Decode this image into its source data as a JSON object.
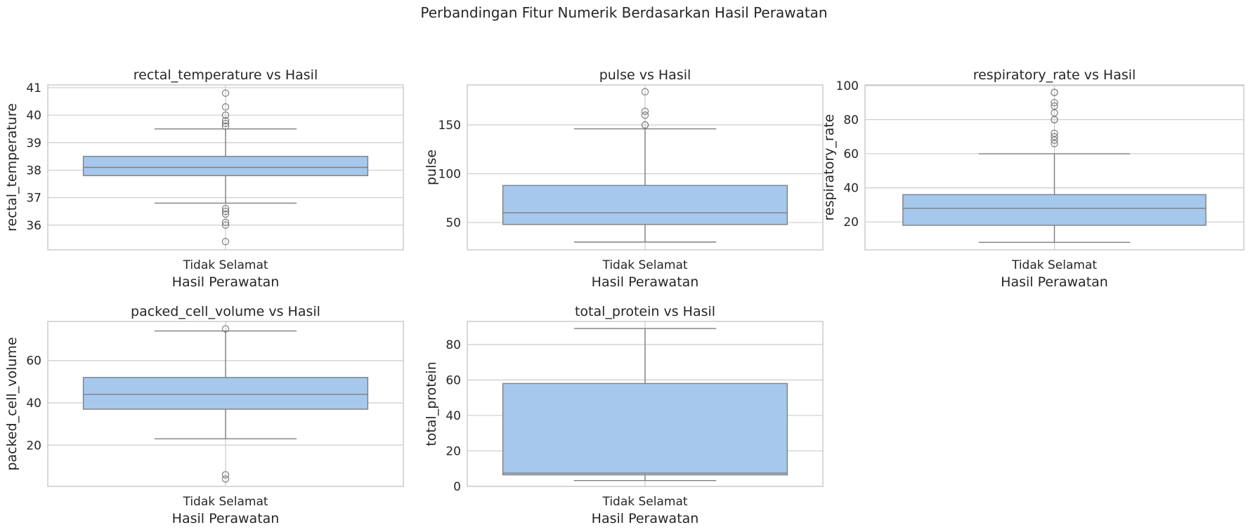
{
  "figure": {
    "suptitle": "Perbandingan Fitur Numerik Berdasarkan Hasil Perawatan"
  },
  "style": {
    "box_fill": "#a7c8ed",
    "line_color": "#7f7f7f",
    "grid_color": "#cccccc",
    "spine_color": "#cccccc",
    "text_color": "#262626",
    "grid": true
  },
  "chart_data": [
    {
      "type": "box",
      "title": "rectal_temperature vs Hasil",
      "xlabel": "Hasil Perawatan",
      "ylabel": "rectal_temperature",
      "categories": [
        "Tidak Selamat"
      ],
      "ylim": [
        35.1,
        41.1
      ],
      "yticks": [
        36,
        37,
        38,
        39,
        40,
        41
      ],
      "boxes": [
        {
          "category": "Tidak Selamat",
          "whisker_low": 36.8,
          "q1": 37.8,
          "median": 38.1,
          "q3": 38.5,
          "whisker_high": 39.5,
          "outliers": [
            40.8,
            40.3,
            40.0,
            39.8,
            39.7,
            39.6,
            36.6,
            36.5,
            36.4,
            36.1,
            36.0,
            35.4
          ]
        }
      ]
    },
    {
      "type": "box",
      "title": "pulse vs Hasil",
      "xlabel": "Hasil Perawatan",
      "ylabel": "pulse",
      "categories": [
        "Tidak Selamat"
      ],
      "ylim": [
        22,
        191
      ],
      "yticks": [
        50,
        100,
        150
      ],
      "boxes": [
        {
          "category": "Tidak Selamat",
          "whisker_low": 30,
          "q1": 48,
          "median": 60,
          "q3": 88,
          "whisker_high": 146,
          "outliers": [
            184,
            164,
            160,
            150,
            150
          ]
        }
      ]
    },
    {
      "type": "box",
      "title": "respiratory_rate vs Hasil",
      "xlabel": "Hasil Perawatan",
      "ylabel": "respiratory_rate",
      "categories": [
        "Tidak Selamat"
      ],
      "ylim": [
        3.6,
        100.4
      ],
      "yticks": [
        20,
        40,
        60,
        80,
        100
      ],
      "boxes": [
        {
          "category": "Tidak Selamat",
          "whisker_low": 8,
          "q1": 18,
          "median": 28,
          "q3": 36,
          "whisker_high": 60,
          "outliers": [
            96,
            96,
            90,
            88,
            84,
            80,
            80,
            72,
            70,
            68,
            66
          ]
        }
      ]
    },
    {
      "type": "box",
      "title": "packed_cell_volume vs Hasil",
      "xlabel": "Hasil Perawatan",
      "ylabel": "packed_cell_volume",
      "categories": [
        "Tidak Selamat"
      ],
      "ylim": [
        0.5,
        78.5
      ],
      "yticks": [
        20,
        40,
        60
      ],
      "boxes": [
        {
          "category": "Tidak Selamat",
          "whisker_low": 23,
          "q1": 37,
          "median": 44,
          "q3": 52,
          "whisker_high": 74,
          "outliers": [
            75,
            6,
            4
          ]
        }
      ]
    },
    {
      "type": "box",
      "title": "total_protein vs Hasil",
      "xlabel": "Hasil Perawatan",
      "ylabel": "total_protein",
      "categories": [
        "Tidak Selamat"
      ],
      "ylim": [
        0,
        93
      ],
      "yticks": [
        0,
        20,
        40,
        60,
        80
      ],
      "boxes": [
        {
          "category": "Tidak Selamat",
          "whisker_low": 3.3,
          "q1": 6.5,
          "median": 7.5,
          "q3": 58,
          "whisker_high": 89,
          "outliers": []
        }
      ]
    }
  ]
}
